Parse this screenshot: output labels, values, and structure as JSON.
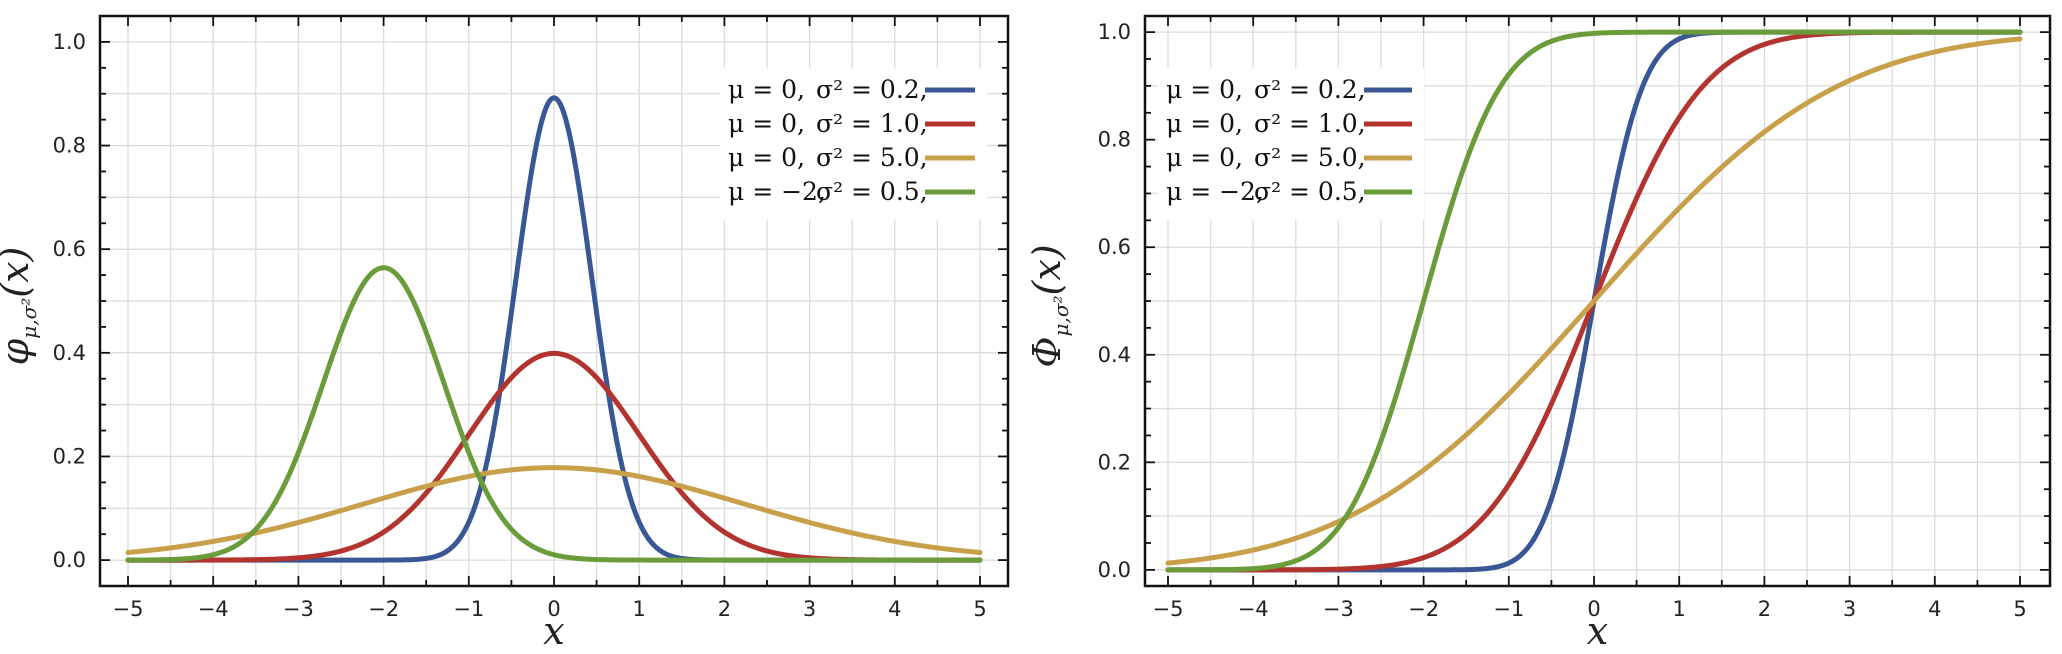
{
  "chart_data": [
    {
      "type": "line",
      "function": "pdf",
      "ylabel_main": "φ",
      "ylabel_sub": "μ,σ²",
      "ylabel_arg": "(x)",
      "xlabel": "x",
      "xlim": [
        -5,
        5
      ],
      "ylim": [
        -0.05,
        1.05
      ],
      "x_ticks": [
        "−5",
        "−4",
        "−3",
        "−2",
        "−1",
        "0",
        "1",
        "2",
        "3",
        "4",
        "5"
      ],
      "y_ticks": [
        "0.0",
        "0.2",
        "0.4",
        "0.6",
        "0.8",
        "1.0"
      ],
      "x_tick_values": [
        -5,
        -4,
        -3,
        -2,
        -1,
        0,
        1,
        2,
        3,
        4,
        5
      ],
      "y_tick_values": [
        0,
        0.2,
        0.4,
        0.6,
        0.8,
        1.0
      ],
      "grid": true,
      "legend_position": "top-right",
      "series": [
        {
          "mu_label": "μ = 0,",
          "var_label": "σ² = 0.2,",
          "mu": 0,
          "variance": 0.2,
          "color": "#3a5795"
        },
        {
          "mu_label": "μ = 0,",
          "var_label": "σ² = 1.0,",
          "mu": 0,
          "variance": 1.0,
          "color": "#b3332f"
        },
        {
          "mu_label": "μ = 0,",
          "var_label": "σ² = 5.0,",
          "mu": 0,
          "variance": 5.0,
          "color": "#c9a04a"
        },
        {
          "mu_label": "μ = −2,",
          "var_label": "σ² = 0.5,",
          "mu": -2,
          "variance": 0.5,
          "color": "#6a9d3a"
        }
      ]
    },
    {
      "type": "line",
      "function": "cdf",
      "ylabel_main": "Φ",
      "ylabel_sub": "μ,σ²",
      "ylabel_arg": "(x)",
      "xlabel": "x",
      "xlim": [
        -5,
        5
      ],
      "ylim": [
        -0.03,
        1.03
      ],
      "x_ticks": [
        "−5",
        "−4",
        "−3",
        "−2",
        "−1",
        "0",
        "1",
        "2",
        "3",
        "4",
        "5"
      ],
      "y_ticks": [
        "0.0",
        "0.2",
        "0.4",
        "0.6",
        "0.8",
        "1.0"
      ],
      "x_tick_values": [
        -5,
        -4,
        -3,
        -2,
        -1,
        0,
        1,
        2,
        3,
        4,
        5
      ],
      "y_tick_values": [
        0,
        0.2,
        0.4,
        0.6,
        0.8,
        1.0
      ],
      "grid": true,
      "legend_position": "top-left",
      "series": [
        {
          "mu_label": "μ = 0,",
          "var_label": "σ² = 0.2,",
          "mu": 0,
          "variance": 0.2,
          "color": "#3a5795"
        },
        {
          "mu_label": "μ = 0,",
          "var_label": "σ² = 1.0,",
          "mu": 0,
          "variance": 1.0,
          "color": "#b3332f"
        },
        {
          "mu_label": "μ = 0,",
          "var_label": "σ² = 5.0,",
          "mu": 0,
          "variance": 5.0,
          "color": "#c9a04a"
        },
        {
          "mu_label": "μ = −2,",
          "var_label": "σ² = 0.5,",
          "mu": -2,
          "variance": 0.5,
          "color": "#6a9d3a"
        }
      ]
    }
  ]
}
